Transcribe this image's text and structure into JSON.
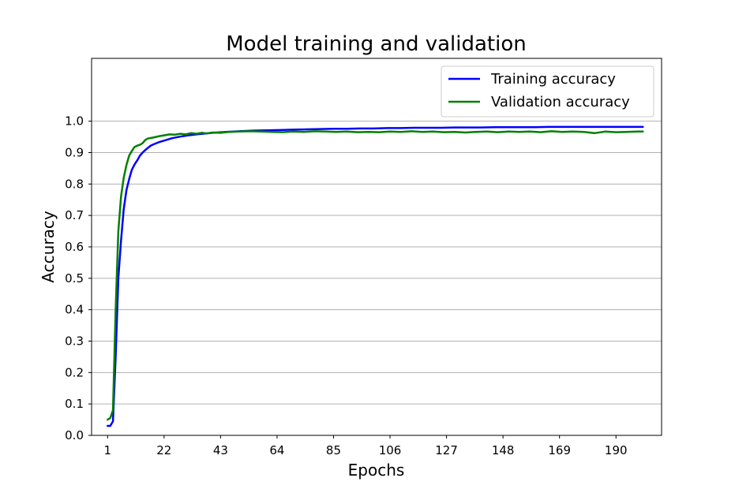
{
  "chart_data": {
    "type": "line",
    "title": "Model training and validation",
    "xlabel": "Epochs",
    "ylabel": "Accuracy",
    "xlim": [
      -4.95,
      206.95
    ],
    "ylim": [
      0.0,
      1.2
    ],
    "xticks": [
      1,
      22,
      43,
      64,
      85,
      106,
      127,
      148,
      169,
      190
    ],
    "yticks": [
      0.0,
      0.1,
      0.2,
      0.3,
      0.4,
      0.5,
      0.6,
      0.7,
      0.8,
      0.9,
      1.0
    ],
    "ytick_labels": [
      "0.0",
      "0.1",
      "0.2",
      "0.3",
      "0.4",
      "0.5",
      "0.6",
      "0.7",
      "0.8",
      "0.9",
      "1.0"
    ],
    "grid": "horizontal",
    "legend_position": "top-right",
    "series": [
      {
        "name": "Training accuracy",
        "color": "#0000ff",
        "points": [
          [
            1,
            0.03
          ],
          [
            2,
            0.03
          ],
          [
            3,
            0.045
          ],
          [
            4,
            0.25
          ],
          [
            5,
            0.5
          ],
          [
            6,
            0.62
          ],
          [
            7,
            0.72
          ],
          [
            8,
            0.78
          ],
          [
            9,
            0.815
          ],
          [
            10,
            0.845
          ],
          [
            11,
            0.862
          ],
          [
            12,
            0.875
          ],
          [
            13,
            0.89
          ],
          [
            14,
            0.9
          ],
          [
            15,
            0.908
          ],
          [
            16,
            0.915
          ],
          [
            17,
            0.922
          ],
          [
            18,
            0.926
          ],
          [
            20,
            0.933
          ],
          [
            22,
            0.938
          ],
          [
            25,
            0.946
          ],
          [
            28,
            0.951
          ],
          [
            31,
            0.955
          ],
          [
            35,
            0.959
          ],
          [
            40,
            0.963
          ],
          [
            45,
            0.966
          ],
          [
            50,
            0.968
          ],
          [
            55,
            0.97
          ],
          [
            60,
            0.971
          ],
          [
            65,
            0.972
          ],
          [
            70,
            0.973
          ],
          [
            75,
            0.974
          ],
          [
            80,
            0.975
          ],
          [
            85,
            0.976
          ],
          [
            90,
            0.976
          ],
          [
            95,
            0.977
          ],
          [
            100,
            0.977
          ],
          [
            105,
            0.978
          ],
          [
            110,
            0.978
          ],
          [
            115,
            0.979
          ],
          [
            120,
            0.979
          ],
          [
            125,
            0.979
          ],
          [
            130,
            0.98
          ],
          [
            135,
            0.98
          ],
          [
            140,
            0.98
          ],
          [
            145,
            0.981
          ],
          [
            150,
            0.981
          ],
          [
            155,
            0.981
          ],
          [
            160,
            0.981
          ],
          [
            165,
            0.982
          ],
          [
            170,
            0.982
          ],
          [
            175,
            0.982
          ],
          [
            180,
            0.982
          ],
          [
            185,
            0.982
          ],
          [
            190,
            0.982
          ],
          [
            195,
            0.982
          ],
          [
            200,
            0.982
          ]
        ]
      },
      {
        "name": "Validation accuracy",
        "color": "#008000",
        "points": [
          [
            1,
            0.05
          ],
          [
            2,
            0.055
          ],
          [
            3,
            0.08
          ],
          [
            4,
            0.4
          ],
          [
            5,
            0.65
          ],
          [
            6,
            0.76
          ],
          [
            7,
            0.82
          ],
          [
            8,
            0.86
          ],
          [
            9,
            0.89
          ],
          [
            10,
            0.905
          ],
          [
            11,
            0.918
          ],
          [
            12,
            0.922
          ],
          [
            13,
            0.925
          ],
          [
            14,
            0.93
          ],
          [
            15,
            0.94
          ],
          [
            16,
            0.945
          ],
          [
            18,
            0.948
          ],
          [
            20,
            0.952
          ],
          [
            22,
            0.955
          ],
          [
            24,
            0.958
          ],
          [
            26,
            0.957
          ],
          [
            28,
            0.96
          ],
          [
            30,
            0.958
          ],
          [
            32,
            0.962
          ],
          [
            34,
            0.96
          ],
          [
            36,
            0.963
          ],
          [
            38,
            0.961
          ],
          [
            40,
            0.964
          ],
          [
            43,
            0.963
          ],
          [
            46,
            0.966
          ],
          [
            50,
            0.967
          ],
          [
            54,
            0.968
          ],
          [
            58,
            0.967
          ],
          [
            62,
            0.966
          ],
          [
            66,
            0.965
          ],
          [
            70,
            0.967
          ],
          [
            74,
            0.966
          ],
          [
            78,
            0.968
          ],
          [
            82,
            0.967
          ],
          [
            86,
            0.966
          ],
          [
            90,
            0.967
          ],
          [
            94,
            0.965
          ],
          [
            98,
            0.966
          ],
          [
            102,
            0.965
          ],
          [
            106,
            0.967
          ],
          [
            110,
            0.966
          ],
          [
            114,
            0.968
          ],
          [
            118,
            0.966
          ],
          [
            122,
            0.967
          ],
          [
            126,
            0.965
          ],
          [
            130,
            0.966
          ],
          [
            134,
            0.964
          ],
          [
            138,
            0.966
          ],
          [
            142,
            0.967
          ],
          [
            146,
            0.965
          ],
          [
            150,
            0.967
          ],
          [
            154,
            0.966
          ],
          [
            158,
            0.967
          ],
          [
            162,
            0.965
          ],
          [
            166,
            0.968
          ],
          [
            170,
            0.966
          ],
          [
            174,
            0.967
          ],
          [
            178,
            0.966
          ],
          [
            182,
            0.962
          ],
          [
            186,
            0.967
          ],
          [
            190,
            0.965
          ],
          [
            194,
            0.966
          ],
          [
            198,
            0.967
          ],
          [
            200,
            0.967
          ]
        ]
      }
    ]
  }
}
